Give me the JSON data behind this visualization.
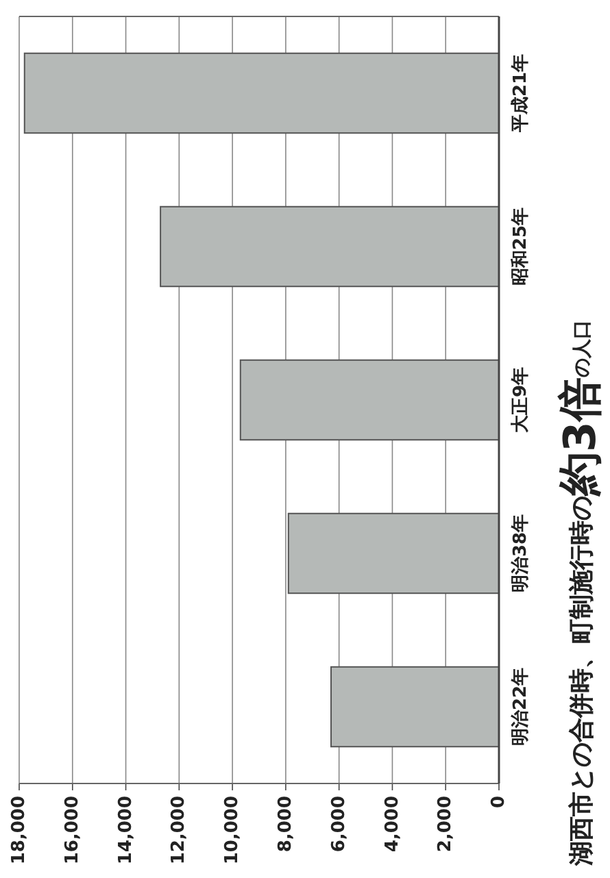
{
  "chart_data": {
    "type": "bar",
    "orientation": "horizontal",
    "title": "湖西市との合併時、町制施行時の**約3倍**の人口",
    "categories": [
      "平成21年",
      "昭和25年",
      "大正9年",
      "明治38年",
      "明治22年"
    ],
    "values": [
      17800,
      12700,
      9700,
      7900,
      6300
    ],
    "color": "#b5b9b7",
    "xlim": [
      18000,
      0
    ],
    "xticks": [
      {
        "value": 18000,
        "label": "18,000"
      },
      {
        "value": 16000,
        "label": "16,000"
      },
      {
        "value": 14000,
        "label": "14,000"
      },
      {
        "value": 12000,
        "label": "12,000"
      },
      {
        "value": 10000,
        "label": "10,000"
      },
      {
        "value": 8000,
        "label": "8,000"
      },
      {
        "value": 6000,
        "label": "6,000"
      },
      {
        "value": 4000,
        "label": "4,000"
      },
      {
        "value": 2000,
        "label": "2,000"
      },
      0
    ],
    "grid": "x"
  }
}
